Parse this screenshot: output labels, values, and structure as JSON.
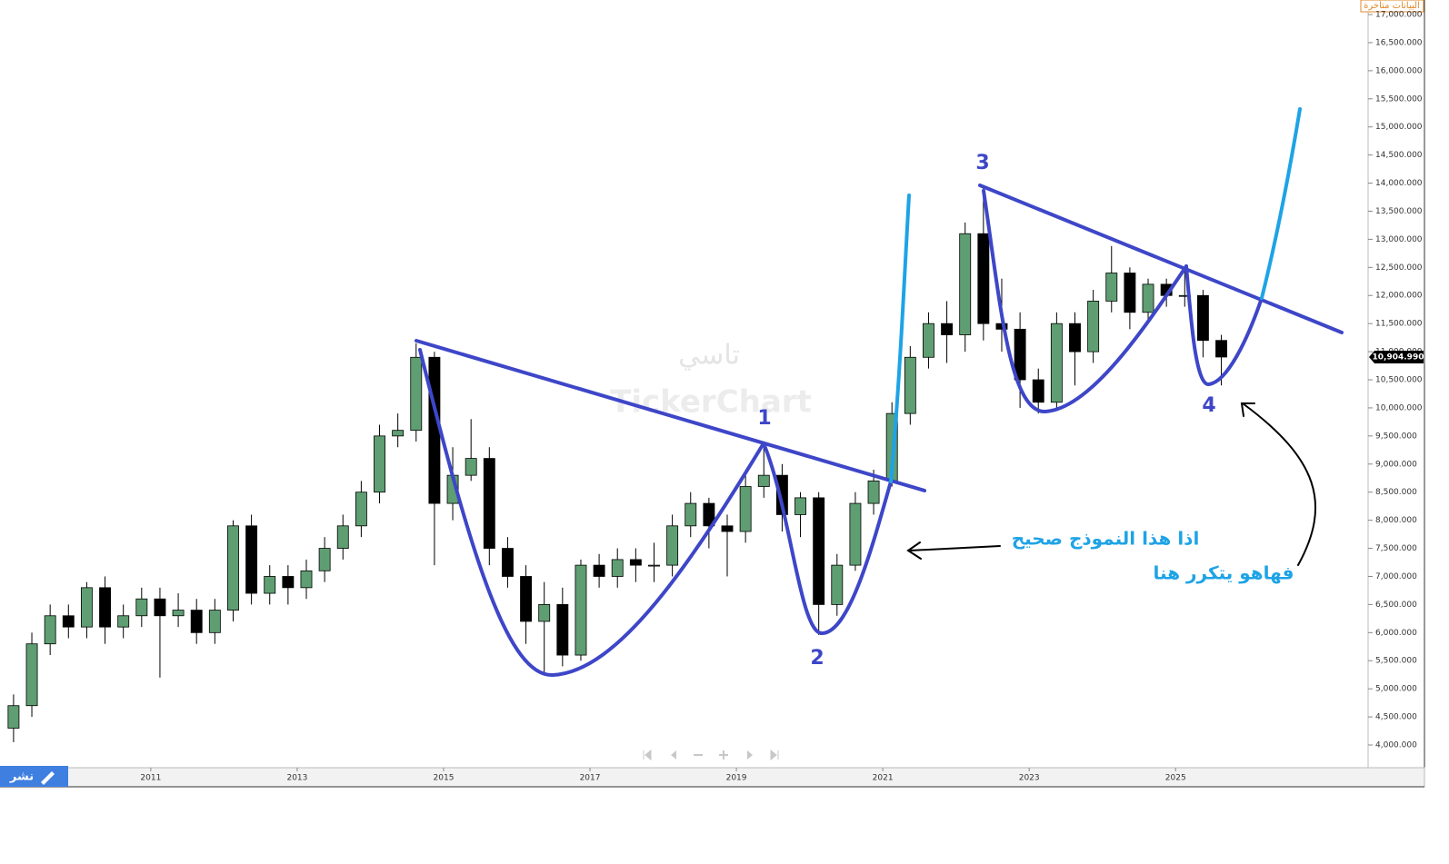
{
  "chart_data": {
    "type": "candlestick",
    "header_notice": "البيانات متأخرة",
    "watermark": {
      "arabic": "تاسي",
      "latin": "TickerChart"
    },
    "publish_button": "نشر",
    "annotations": {
      "labels": [
        "1",
        "2",
        "3",
        "4"
      ],
      "text_line1": "اذا هذا النموذج صحيح",
      "text_line2": "فهاهو يتكرر هنا"
    },
    "last_price": {
      "value": 10904.99,
      "label": "10,904.990"
    },
    "xlim": [
      2008.94,
      2027.63
    ],
    "xticks": [
      2011,
      2013,
      2015,
      2017,
      2019,
      2021,
      2023,
      2025
    ],
    "ylim": [
      3596,
      17259
    ],
    "yticks": [
      {
        "value": 4000,
        "label": "4,000.000"
      },
      {
        "value": 4500,
        "label": "4,500.000"
      },
      {
        "value": 5000,
        "label": "5,000.000"
      },
      {
        "value": 5500,
        "label": "5,500.000"
      },
      {
        "value": 6000,
        "label": "6,000.000"
      },
      {
        "value": 6500,
        "label": "6,500.000"
      },
      {
        "value": 7000,
        "label": "7,000.000"
      },
      {
        "value": 7500,
        "label": "7,500.000"
      },
      {
        "value": 8000,
        "label": "8,000.000"
      },
      {
        "value": 8500,
        "label": "8,500.000"
      },
      {
        "value": 9000,
        "label": "9,000.000"
      },
      {
        "value": 9500,
        "label": "9,500.000"
      },
      {
        "value": 10000,
        "label": "10,000.000"
      },
      {
        "value": 10500,
        "label": "10,500.000"
      },
      {
        "value": 11000,
        "label": "11,000.000"
      },
      {
        "value": 11500,
        "label": "11,500.000"
      },
      {
        "value": 12000,
        "label": "12,000.000"
      },
      {
        "value": 12500,
        "label": "12,500.000"
      },
      {
        "value": 13000,
        "label": "13,000.000"
      },
      {
        "value": 13500,
        "label": "13,500.000"
      },
      {
        "value": 14000,
        "label": "14,000.000"
      },
      {
        "value": 14500,
        "label": "14,500.000"
      },
      {
        "value": 15000,
        "label": "15,000.000"
      },
      {
        "value": 15500,
        "label": "15,500.000"
      },
      {
        "value": 16000,
        "label": "16,000.000"
      },
      {
        "value": 16500,
        "label": "16,500.000"
      },
      {
        "value": 17000,
        "label": "17,000.000"
      }
    ],
    "up_color": "#5f9e72",
    "down_color": "#000000",
    "x": [
      2009,
      2009.25,
      2009.5,
      2009.75,
      2010,
      2010.25,
      2010.5,
      2010.75,
      2011,
      2011.25,
      2011.5,
      2011.75,
      2012,
      2012.25,
      2012.5,
      2012.75,
      2013,
      2013.25,
      2013.5,
      2013.75,
      2014,
      2014.25,
      2014.5,
      2014.75,
      2015,
      2015.25,
      2015.5,
      2015.75,
      2016,
      2016.25,
      2016.5,
      2016.75,
      2017,
      2017.25,
      2017.5,
      2017.75,
      2018,
      2018.25,
      2018.5,
      2018.75,
      2019,
      2019.25,
      2019.5,
      2019.75,
      2020,
      2020.25,
      2020.5,
      2020.75,
      2021,
      2021.25,
      2021.5,
      2021.75,
      2022,
      2022.25,
      2022.5,
      2022.75,
      2023,
      2023.25,
      2023.5,
      2023.75,
      2024,
      2024.25,
      2024.5,
      2024.75,
      2025,
      2025.25,
      2025.5
    ],
    "open": [
      4300,
      4700,
      5800,
      6300,
      6100,
      6800,
      6100,
      6300,
      6600,
      6300,
      6400,
      6000,
      6400,
      7900,
      6700,
      7000,
      6800,
      7100,
      7500,
      7900,
      8500,
      9500,
      9600,
      10900,
      8300,
      8800,
      9100,
      7500,
      7000,
      6200,
      6500,
      5600,
      7200,
      7000,
      7300,
      7200,
      7200,
      7900,
      8300,
      7900,
      7800,
      8600,
      8800,
      8100,
      8400,
      6500,
      7200,
      8300,
      8700,
      9900,
      10900,
      11500,
      11300,
      13100,
      11500,
      11400,
      10500,
      10100,
      11500,
      11000,
      11900,
      12400,
      11700,
      12200,
      12000,
      12000,
      11200
    ],
    "high": [
      4900,
      6000,
      6500,
      6500,
      6900,
      7000,
      6500,
      6800,
      6800,
      6700,
      6600,
      6600,
      8000,
      8100,
      7200,
      7200,
      7300,
      7700,
      8100,
      8700,
      9700,
      9900,
      11150,
      11000,
      9300,
      9800,
      9300,
      7700,
      7200,
      6900,
      6800,
      7300,
      7400,
      7500,
      7500,
      7600,
      8100,
      8500,
      8400,
      8100,
      8800,
      9400,
      9000,
      8500,
      8500,
      7400,
      8500,
      8900,
      10100,
      11100,
      11700,
      11900,
      13300,
      13950,
      12300,
      11700,
      10700,
      11700,
      11700,
      12100,
      12880,
      12500,
      12300,
      12300,
      12500,
      12100,
      11300
    ],
    "low": [
      4050,
      4500,
      5600,
      5900,
      5900,
      5800,
      5900,
      6100,
      5200,
      6100,
      5800,
      5800,
      6200,
      6500,
      6500,
      6500,
      6600,
      6900,
      7300,
      7700,
      8300,
      9300,
      9400,
      7200,
      8000,
      8700,
      7200,
      6800,
      5800,
      5300,
      5400,
      5500,
      6800,
      6800,
      6900,
      6900,
      7000,
      7700,
      7500,
      7000,
      7600,
      8400,
      7800,
      7700,
      5959,
      6300,
      7100,
      8100,
      8600,
      9700,
      10700,
      10800,
      11000,
      11200,
      11000,
      10000,
      9900,
      10000,
      10400,
      10800,
      11700,
      11400,
      11500,
      11800,
      11800,
      10900,
      10400
    ],
    "close": [
      4700,
      5800,
      6300,
      6100,
      6800,
      6100,
      6300,
      6600,
      6300,
      6400,
      6000,
      6400,
      7900,
      6700,
      7000,
      6800,
      7100,
      7500,
      7900,
      8500,
      9500,
      9600,
      10900,
      8300,
      8800,
      9100,
      7500,
      7000,
      6200,
      6500,
      5600,
      7200,
      7000,
      7300,
      7200,
      7200,
      7900,
      8300,
      7900,
      7800,
      8600,
      8800,
      8100,
      8400,
      6500,
      7200,
      8300,
      8700,
      9900,
      10900,
      11500,
      11300,
      13100,
      11500,
      11400,
      10500,
      10100,
      11500,
      11000,
      11900,
      12400,
      11700,
      12200,
      12000,
      12000,
      11200,
      10905
    ]
  }
}
